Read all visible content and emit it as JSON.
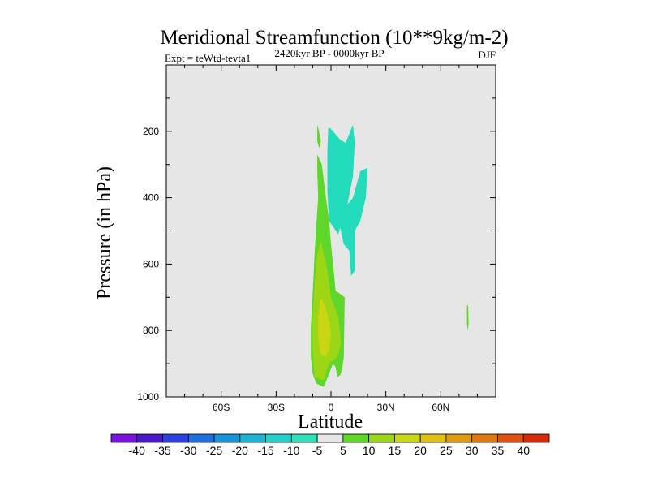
{
  "chart_data": {
    "type": "contour",
    "title": "Meridional Streamfunction (10**9kg/m-2)",
    "subtitle_left": "Expt = teWtd-tevta1",
    "subtitle_center": "2420kyr BP - 0000kyr BP",
    "subtitle_right": "DJF",
    "xlabel": "Latitude",
    "ylabel": "Pressure (in hPa)",
    "xlim": [
      -90,
      90
    ],
    "ylim": [
      1000,
      0
    ],
    "x_ticks": [
      {
        "value": -60,
        "label": "60S"
      },
      {
        "value": -30,
        "label": "30S"
      },
      {
        "value": 0,
        "label": "0"
      },
      {
        "value": 30,
        "label": "30N"
      },
      {
        "value": 60,
        "label": "60N"
      }
    ],
    "y_ticks": [
      {
        "value": 200,
        "label": "200"
      },
      {
        "value": 400,
        "label": "400"
      },
      {
        "value": 600,
        "label": "600"
      },
      {
        "value": 800,
        "label": "800"
      },
      {
        "value": 1000,
        "label": "1000"
      }
    ],
    "contour_levels": [
      -40,
      -35,
      -30,
      -25,
      -20,
      -15,
      -10,
      -5,
      5,
      10,
      15,
      20,
      25,
      30,
      35,
      40
    ],
    "colorbar_colors": [
      "#7a10dd",
      "#4a18c8",
      "#2d3fe0",
      "#1f6edc",
      "#1a94d8",
      "#1db4d4",
      "#22d0c8",
      "#30e0b8",
      "#e6e6e6",
      "#5ed62a",
      "#9cd614",
      "#c8d614",
      "#e0c010",
      "#e09a10",
      "#e07810",
      "#e05010",
      "#d42a08"
    ],
    "regions": [
      {
        "name": "negative-upper-lobe",
        "level_range": [
          -10,
          -5
        ],
        "color": "#22dcbc",
        "points": [
          [
            -1.5,
            190
          ],
          [
            -0.5,
            190
          ],
          [
            5,
            225
          ],
          [
            8,
            235
          ],
          [
            12,
            180
          ],
          [
            13,
            235
          ],
          [
            12,
            335
          ],
          [
            9,
            420
          ],
          [
            12,
            400
          ],
          [
            16,
            320
          ],
          [
            20,
            310
          ],
          [
            19,
            400
          ],
          [
            16,
            470
          ],
          [
            13,
            500
          ],
          [
            13,
            620
          ],
          [
            11,
            635
          ],
          [
            10,
            560
          ],
          [
            7,
            540
          ],
          [
            5,
            490
          ],
          [
            4,
            510
          ],
          [
            -1,
            470
          ],
          [
            -2,
            380
          ],
          [
            -2,
            260
          ],
          [
            -1.5,
            190
          ]
        ]
      },
      {
        "name": "positive-left-blob",
        "level_range": [
          5,
          10
        ],
        "color": "#5ed62a",
        "points": [
          [
            -7.5,
            180
          ],
          [
            -6.5,
            200
          ],
          [
            -5.5,
            230
          ],
          [
            -6.5,
            250
          ],
          [
            -7.5,
            230
          ]
        ]
      },
      {
        "name": "positive-lower-lobe",
        "level_range": [
          5,
          10
        ],
        "color": "#5ed62a",
        "points": [
          [
            -7.5,
            270
          ],
          [
            -5,
            300
          ],
          [
            -3,
            390
          ],
          [
            -1,
            470
          ],
          [
            0,
            540
          ],
          [
            1.5,
            620
          ],
          [
            2.5,
            680
          ],
          [
            5,
            690
          ],
          [
            7.5,
            700
          ],
          [
            7,
            880
          ],
          [
            6,
            920
          ],
          [
            5,
            935
          ],
          [
            3.5,
            940
          ],
          [
            2.5,
            910
          ],
          [
            1,
            900
          ],
          [
            -1,
            930
          ],
          [
            -4,
            970
          ],
          [
            -8,
            960
          ],
          [
            -10,
            930
          ],
          [
            -11,
            880
          ],
          [
            -11,
            790
          ],
          [
            -10,
            690
          ],
          [
            -9,
            570
          ],
          [
            -8,
            480
          ],
          [
            -7,
            400
          ],
          [
            -7.5,
            320
          ],
          [
            -7.5,
            270
          ]
        ]
      },
      {
        "name": "positive-inner",
        "level_range": [
          10,
          15
        ],
        "color": "#9cd614",
        "points": [
          [
            -5.5,
            530
          ],
          [
            -2,
            620
          ],
          [
            0,
            700
          ],
          [
            4,
            760
          ],
          [
            5.5,
            840
          ],
          [
            3.5,
            880
          ],
          [
            -1,
            900
          ],
          [
            -4,
            950
          ],
          [
            -9,
            940
          ],
          [
            -10,
            860
          ],
          [
            -10,
            760
          ],
          [
            -9,
            660
          ],
          [
            -7.5,
            570
          ]
        ]
      },
      {
        "name": "positive-core",
        "level_range": [
          15,
          20
        ],
        "color": "#c8d614",
        "points": [
          [
            -5.5,
            700
          ],
          [
            -3,
            730
          ],
          [
            -1,
            770
          ],
          [
            0,
            810
          ],
          [
            -1,
            860
          ],
          [
            -3,
            880
          ],
          [
            -6,
            870
          ],
          [
            -7,
            820
          ],
          [
            -7,
            760
          ]
        ]
      },
      {
        "name": "positive-right-sliver",
        "level_range": [
          5,
          10
        ],
        "color": "#5ed62a",
        "points": [
          [
            74.5,
            720
          ],
          [
            75,
            730
          ],
          [
            75.2,
            780
          ],
          [
            74.8,
            800
          ],
          [
            74.3,
            780
          ],
          [
            74.3,
            730
          ]
        ]
      }
    ]
  }
}
